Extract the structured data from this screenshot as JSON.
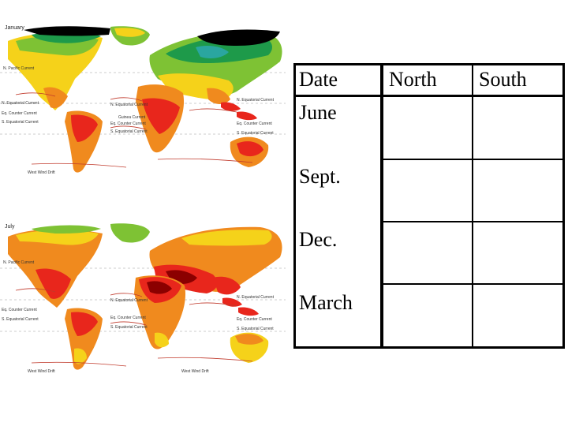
{
  "maps": {
    "january": {
      "title": "January"
    },
    "july": {
      "title": "July"
    },
    "current_labels_jan": [
      "N. Pacific Current",
      "N. Equatorial Current",
      "Eq. Counter Current",
      "S. Equatorial Current",
      "West Wind Drift",
      "N. Equatorial Current",
      "Guinea Current",
      "Eq. Counter Current",
      "S. Equatorial Current",
      "N. Equatorial Current",
      "Eq. Counter Current",
      "S. Equatorial Current"
    ],
    "current_labels_jul": [
      "N. Pacific Current",
      "Eq. Counter Current",
      "S. Equatorial Current",
      "West Wind Drift",
      "N. Equatorial Current",
      "Eq. Counter Current",
      "S. Equatorial Current",
      "N. Equatorial Current",
      "Eq. Counter Current",
      "S. Equatorial Current",
      "West Wind Drift"
    ],
    "colors": {
      "hot": "#e8261c",
      "warm": "#f08a1e",
      "mild": "#f5d21a",
      "cool": "#7ec234",
      "cold": "#1e9a4a",
      "colder": "#2aa6a0",
      "polar": "#000000",
      "ocean": "#ffffff"
    }
  },
  "table": {
    "headers": [
      "Date",
      "North",
      "South"
    ],
    "rows": [
      {
        "date": "June",
        "north": "",
        "south": ""
      },
      {
        "date": "Sept.",
        "north": "",
        "south": ""
      },
      {
        "date": "Dec.",
        "north": "",
        "south": ""
      },
      {
        "date": "March",
        "north": "",
        "south": ""
      }
    ]
  }
}
